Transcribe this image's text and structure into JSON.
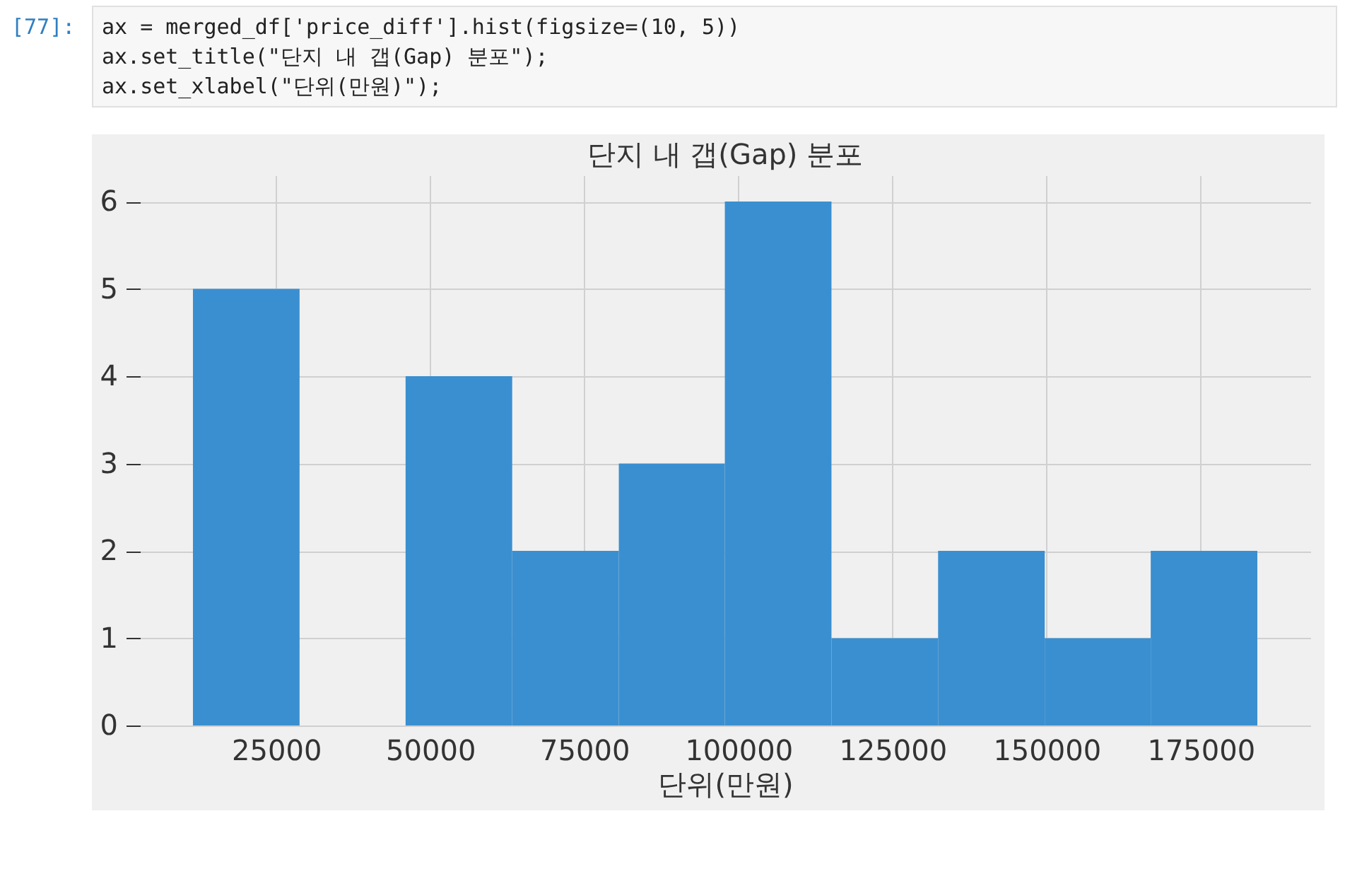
{
  "chart_data": {
    "type": "histogram",
    "title": "단지 내 갭(Gap) 분포",
    "xlabel": "단위(만원)",
    "annotations": [
      "[77]:",
      "ax = merged_df['price_diff'].hist(figsize=(10, 5))",
      "ax.set_title(\"단지 내 갭(Gap) 분포\");",
      "ax.set_xlabel(\"단위(만원)\");"
    ],
    "bins": [
      11500,
      28800,
      46000,
      63300,
      80600,
      97800,
      115100,
      132400,
      149700,
      166900,
      184200
    ],
    "values": [
      5,
      0,
      4,
      2,
      3,
      6,
      1,
      2,
      1,
      2
    ],
    "color": "#3a8fd0",
    "xlim": [
      2900,
      192800
    ],
    "xticks": [
      25000,
      50000,
      75000,
      100000,
      125000,
      150000,
      175000
    ],
    "ylim": [
      0,
      6.3
    ],
    "yticks": [
      0,
      1,
      2,
      3,
      4,
      5,
      6
    ],
    "grid": true
  }
}
